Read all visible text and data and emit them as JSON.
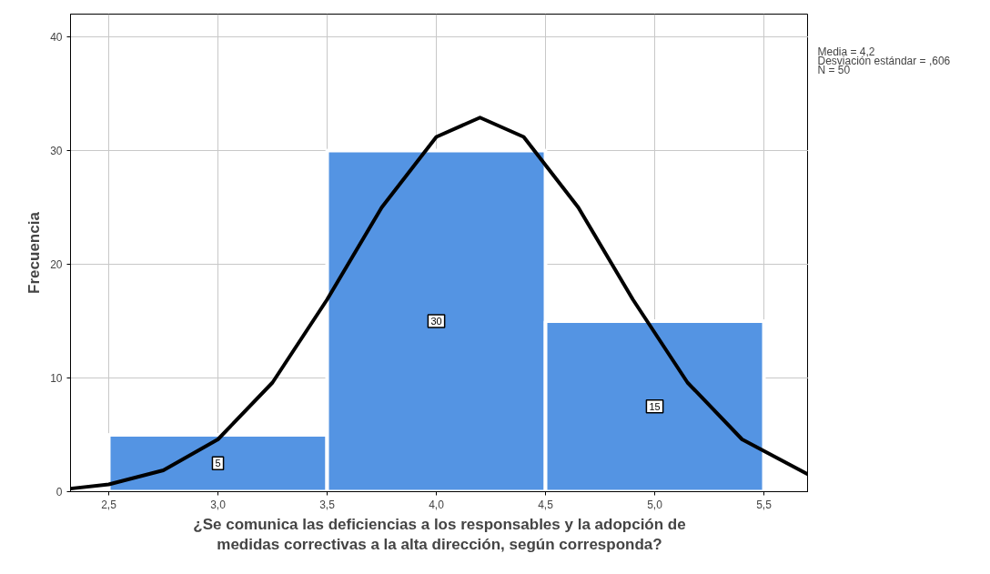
{
  "chart_data": {
    "type": "histogram",
    "xlabel": "¿Se comunica las deficiencias a los responsables y la adopción de\nmedidas correctivas a la alta dirección, según corresponda?",
    "ylabel": "Frecuencia",
    "bins": [
      2.5,
      3.5,
      4.5,
      5.5
    ],
    "series": [
      {
        "color": "#5494e3",
        "values": [
          5,
          30,
          15
        ],
        "value_labels": [
          "5",
          "30",
          "15"
        ]
      },
      {
        "type": "line",
        "color": "#000000",
        "x": [
          2.325,
          2.5,
          2.75,
          3.0,
          3.25,
          3.5,
          3.75,
          4.0,
          4.2,
          4.4,
          4.65,
          4.9,
          5.15,
          5.4,
          5.704
        ],
        "values": [
          0.27,
          0.64,
          1.88,
          4.6,
          9.6,
          16.9,
          25.0,
          31.2,
          32.9,
          31.2,
          25.0,
          16.9,
          9.6,
          4.6,
          1.5
        ]
      }
    ],
    "xlim": [
      2.325,
      5.704
    ],
    "ylim": [
      0,
      42
    ],
    "xticks": [
      {
        "value": 2.5,
        "label": "2,5"
      },
      {
        "value": 3.0,
        "label": "3,0"
      },
      {
        "value": 3.5,
        "label": "3,5"
      },
      {
        "value": 4.0,
        "label": "4,0"
      },
      {
        "value": 4.5,
        "label": "4,5"
      },
      {
        "value": 5.0,
        "label": "5,0"
      },
      {
        "value": 5.5,
        "label": "5,5"
      }
    ],
    "yticks": [
      0,
      10,
      20,
      30,
      40
    ],
    "grid": true,
    "line_style": "solid",
    "marker": "none",
    "annotations": [
      "Media = 4,2",
      "Desviación estándar = ,606",
      "N = 50"
    ]
  }
}
